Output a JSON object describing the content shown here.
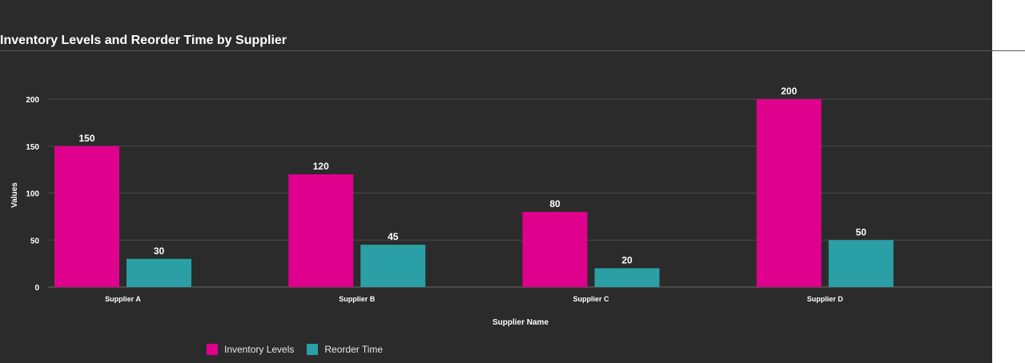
{
  "chart_data": {
    "type": "bar",
    "title": "Inventory Levels and Reorder Time by Supplier",
    "xlabel": "Supplier Name",
    "ylabel": "Values",
    "categories": [
      "Supplier A",
      "Supplier B",
      "Supplier C",
      "Supplier D"
    ],
    "series": [
      {
        "name": "Inventory Levels",
        "values": [
          150,
          120,
          80,
          200
        ],
        "color": "#e0008e"
      },
      {
        "name": "Reorder Time",
        "values": [
          30,
          45,
          20,
          50
        ],
        "color": "#2aa0a6"
      }
    ],
    "yticks": [
      0,
      50,
      100,
      150,
      200
    ],
    "ylim": [
      0,
      200
    ],
    "grid": true,
    "legend_position": "bottom-left",
    "background_color": "#2b2b2b"
  }
}
